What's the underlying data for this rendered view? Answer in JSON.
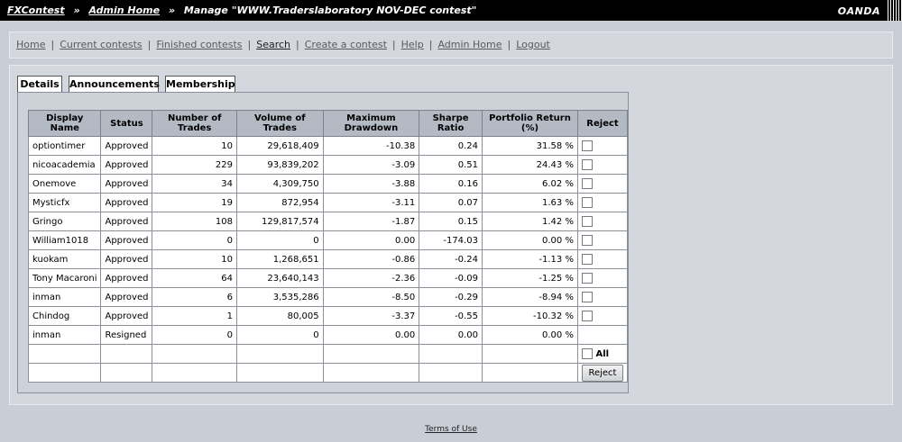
{
  "header": {
    "crumb_home": "FXContest",
    "crumb_admin": "Admin Home",
    "crumb_current": "Manage \"WWW.Traderslaboratory NOV-DEC contest\"",
    "separator": "»",
    "brand": "OANDA"
  },
  "nav": {
    "home": "Home",
    "current": "Current contests",
    "finished": "Finished contests",
    "search": "Search",
    "create": "Create a contest",
    "help": "Help",
    "admin": "Admin Home",
    "logout": "Logout",
    "separator": "|"
  },
  "tabs": {
    "details": "Details",
    "announcements": "Announcements",
    "membership": "Membership"
  },
  "table": {
    "headers": [
      "Display Name",
      "Status",
      "Number of Trades",
      "Volume of Trades",
      "Maximum Drawdown",
      "Sharpe Ratio",
      "Portfolio Return (%)",
      "Reject"
    ],
    "rows": [
      {
        "name": "optiontimer",
        "status": "Approved",
        "trades": "10",
        "volume": "29,618,409",
        "drawdown": "-10.38",
        "sharpe": "0.24",
        "return": "31.58 %",
        "checkbox": true
      },
      {
        "name": "nicoacademia",
        "status": "Approved",
        "trades": "229",
        "volume": "93,839,202",
        "drawdown": "-3.09",
        "sharpe": "0.51",
        "return": "24.43 %",
        "checkbox": true
      },
      {
        "name": "Onemove",
        "status": "Approved",
        "trades": "34",
        "volume": "4,309,750",
        "drawdown": "-3.88",
        "sharpe": "0.16",
        "return": "6.02 %",
        "checkbox": true
      },
      {
        "name": "Mysticfx",
        "status": "Approved",
        "trades": "19",
        "volume": "872,954",
        "drawdown": "-3.11",
        "sharpe": "0.07",
        "return": "1.63 %",
        "checkbox": true
      },
      {
        "name": "Gringo",
        "status": "Approved",
        "trades": "108",
        "volume": "129,817,574",
        "drawdown": "-1.87",
        "sharpe": "0.15",
        "return": "1.42 %",
        "checkbox": true
      },
      {
        "name": "William1018",
        "status": "Approved",
        "trades": "0",
        "volume": "0",
        "drawdown": "0.00",
        "sharpe": "-174.03",
        "return": "0.00 %",
        "checkbox": true
      },
      {
        "name": "kuokam",
        "status": "Approved",
        "trades": "10",
        "volume": "1,268,651",
        "drawdown": "-0.86",
        "sharpe": "-0.24",
        "return": "-1.13 %",
        "checkbox": true
      },
      {
        "name": "Tony Macaroni",
        "status": "Approved",
        "trades": "64",
        "volume": "23,640,143",
        "drawdown": "-2.36",
        "sharpe": "-0.09",
        "return": "-1.25 %",
        "checkbox": true
      },
      {
        "name": "inman",
        "status": "Approved",
        "trades": "6",
        "volume": "3,535,286",
        "drawdown": "-8.50",
        "sharpe": "-0.29",
        "return": "-8.94 %",
        "checkbox": true
      },
      {
        "name": "Chindog",
        "status": "Approved",
        "trades": "1",
        "volume": "80,005",
        "drawdown": "-3.37",
        "sharpe": "-0.55",
        "return": "-10.32 %",
        "checkbox": true
      },
      {
        "name": "inman",
        "status": "Resigned",
        "trades": "0",
        "volume": "0",
        "drawdown": "0.00",
        "sharpe": "0.00",
        "return": "0.00 %",
        "checkbox": false
      }
    ],
    "all_label": "All",
    "reject_button": "Reject"
  },
  "footer": {
    "terms": "Terms of Use"
  }
}
